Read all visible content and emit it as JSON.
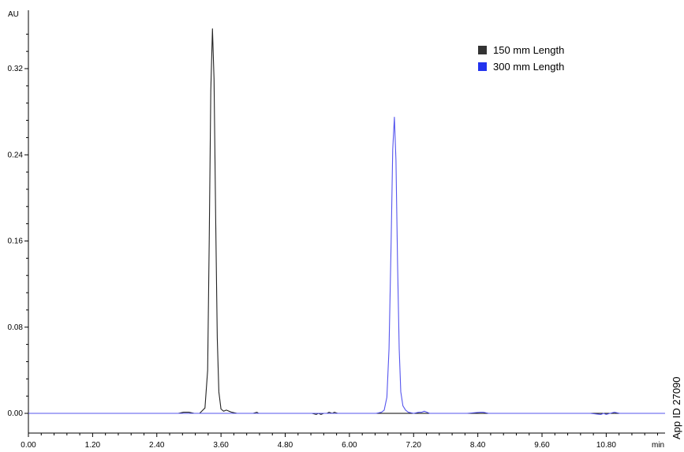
{
  "chart_data": {
    "type": "line",
    "title": "",
    "xlabel": "min",
    "ylabel": "AU",
    "xlim": [
      0,
      11.9
    ],
    "ylim": [
      -0.004,
      0.36
    ],
    "x_ticks": [
      "0.00",
      "1.20",
      "2.40",
      "3.60",
      "4.80",
      "6.00",
      "7.20",
      "8.40",
      "9.60",
      "10.80"
    ],
    "y_ticks": [
      "0.00",
      "0.08",
      "0.16",
      "0.24",
      "0.32"
    ],
    "legend_position": "top-right",
    "grid": false,
    "series": [
      {
        "name": "150 mm Length",
        "color": "#222222",
        "x": [
          0.0,
          2.8,
          2.9,
          2.95,
          3.0,
          3.1,
          3.2,
          3.3,
          3.35,
          3.38,
          3.41,
          3.44,
          3.47,
          3.5,
          3.53,
          3.56,
          3.6,
          3.65,
          3.7,
          3.75,
          3.8,
          3.9,
          4.0,
          4.2,
          4.27,
          4.3,
          4.35,
          4.5,
          4.8,
          5.0,
          5.3,
          5.38,
          5.42,
          5.47,
          5.52,
          5.58,
          5.62,
          5.68,
          5.72,
          5.78,
          5.85,
          5.9,
          5.95,
          6.0
        ],
        "y": [
          0.0,
          0.0,
          0.001,
          0.001,
          0.001,
          0.0,
          0.0,
          0.005,
          0.04,
          0.16,
          0.3,
          0.357,
          0.31,
          0.18,
          0.07,
          0.02,
          0.004,
          0.002,
          0.003,
          0.002,
          0.001,
          0.0,
          0.0,
          0.0,
          0.001,
          0.0,
          0.0,
          0.0,
          0.0,
          0.0,
          0.0,
          -0.001,
          0.0,
          -0.001,
          0.0,
          0.0,
          0.001,
          0.0,
          0.001,
          0.0,
          0.0,
          0.0,
          0.0,
          0.0
        ]
      },
      {
        "name": "300 mm Length",
        "color": "#5555ee",
        "x": [
          0.0,
          2.0,
          3.0,
          4.0,
          5.0,
          5.7,
          6.0,
          6.3,
          6.5,
          6.6,
          6.65,
          6.7,
          6.74,
          6.78,
          6.81,
          6.84,
          6.87,
          6.9,
          6.93,
          6.96,
          7.0,
          7.05,
          7.1,
          7.2,
          7.3,
          7.35,
          7.4,
          7.45,
          7.5,
          7.6,
          7.8,
          8.2,
          8.45,
          8.5,
          8.6,
          9.0,
          10.5,
          10.7,
          10.75,
          10.8,
          10.87,
          10.95,
          11.05,
          11.2,
          11.9
        ],
        "y": [
          0.0,
          0.0,
          0.0,
          0.0,
          0.0,
          0.0,
          0.0,
          0.0,
          0.0,
          0.001,
          0.003,
          0.015,
          0.06,
          0.16,
          0.245,
          0.275,
          0.235,
          0.14,
          0.06,
          0.02,
          0.007,
          0.003,
          0.001,
          0.0,
          0.001,
          0.001,
          0.002,
          0.001,
          0.0,
          0.0,
          0.0,
          0.0,
          0.001,
          0.001,
          0.0,
          0.0,
          0.0,
          -0.001,
          0.0,
          -0.001,
          0.0,
          0.001,
          0.0,
          0.0,
          0.0
        ]
      }
    ],
    "annotations": [
      "App ID 27090"
    ]
  }
}
